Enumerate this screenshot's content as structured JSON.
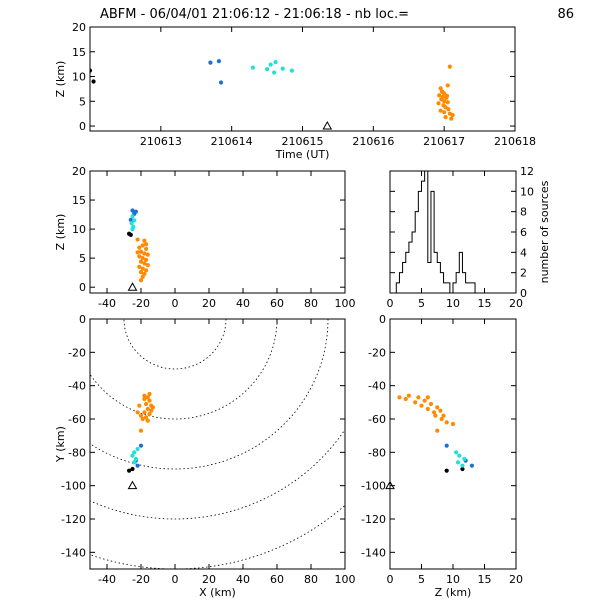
{
  "figure": {
    "title": "ABFM - 06/04/01 21:06:12 - 21:06:18 - nb loc.=",
    "count_label": "86"
  },
  "colors": {
    "black": "#000000",
    "blue": "#1f6fd6",
    "cyan": "#22e0d8",
    "orange": "#ff8a00"
  },
  "chart_data": [
    {
      "type": "scatter",
      "panel": "time-altitude",
      "xlabel": "Time (UT)",
      "ylabel": "Z (km)",
      "xlim": [
        210612,
        210618
      ],
      "ylim": [
        -1,
        20
      ],
      "xticks": [
        "210613",
        "210614",
        "210615",
        "210616",
        "210617",
        "210618"
      ],
      "yticks": [
        "0",
        "5",
        "10",
        "15",
        "20"
      ],
      "marker": {
        "x": 210615.35,
        "y": 0
      },
      "series": [
        {
          "color": "black",
          "points": [
            [
              210612.0,
              11.2
            ],
            [
              210612.05,
              9.0
            ]
          ]
        },
        {
          "color": "blue",
          "points": [
            [
              210613.7,
              12.8
            ],
            [
              210613.82,
              13.1
            ],
            [
              210613.85,
              8.8
            ]
          ]
        },
        {
          "color": "cyan",
          "points": [
            [
              210614.3,
              11.8
            ],
            [
              210614.5,
              11.5
            ],
            [
              210614.55,
              12.4
            ],
            [
              210614.62,
              12.9
            ],
            [
              210614.6,
              10.8
            ],
            [
              210614.72,
              11.6
            ],
            [
              210614.85,
              11.2
            ]
          ]
        },
        {
          "color": "orange",
          "points": [
            [
              210616.95,
              7.6
            ],
            [
              210616.97,
              7.0
            ],
            [
              210617.0,
              6.6
            ],
            [
              210616.93,
              6.2
            ],
            [
              210616.98,
              5.9
            ],
            [
              210617.03,
              5.7
            ],
            [
              210616.96,
              5.4
            ],
            [
              210617.0,
              5.0
            ],
            [
              210617.05,
              4.8
            ],
            [
              210616.92,
              4.6
            ],
            [
              210616.99,
              4.2
            ],
            [
              210617.02,
              3.8
            ],
            [
              210617.06,
              3.4
            ],
            [
              210616.95,
              3.1
            ],
            [
              210617.0,
              2.8
            ],
            [
              210617.08,
              2.5
            ],
            [
              210617.12,
              2.2
            ],
            [
              210617.02,
              1.8
            ],
            [
              210617.1,
              1.5
            ],
            [
              210617.05,
              8.2
            ],
            [
              210617.08,
              12.0
            ],
            [
              210616.97,
              6.9
            ],
            [
              210617.04,
              6.1
            ]
          ]
        }
      ]
    },
    {
      "type": "scatter",
      "panel": "x-altitude",
      "ylabel": "Z (km)",
      "xlim": [
        -50,
        100
      ],
      "ylim": [
        -1,
        20
      ],
      "xticks": [
        "-40",
        "-20",
        "0",
        "20",
        "40",
        "60",
        "80",
        "100"
      ],
      "yticks": [
        "0",
        "5",
        "10",
        "15",
        "20"
      ],
      "marker": {
        "x": -25,
        "y": 0
      },
      "series": [
        {
          "color": "black",
          "points": [
            [
              -27,
              9.2
            ],
            [
              -26,
              9.0
            ]
          ]
        },
        {
          "color": "blue",
          "points": [
            [
              -25,
              13.2
            ],
            [
              -23,
              13.0
            ],
            [
              -24,
              12.6
            ],
            [
              -26,
              11.6
            ]
          ]
        },
        {
          "color": "cyan",
          "points": [
            [
              -25,
              12.2
            ],
            [
              -24,
              11.5
            ],
            [
              -25.5,
              11.0
            ],
            [
              -24.5,
              10.4
            ],
            [
              -25,
              10.0
            ]
          ]
        },
        {
          "color": "orange",
          "points": [
            [
              -22,
              8.2
            ],
            [
              -18,
              8.0
            ],
            [
              -19,
              7.2
            ],
            [
              -21,
              6.8
            ],
            [
              -17,
              6.6
            ],
            [
              -20,
              6.1
            ],
            [
              -18,
              5.8
            ],
            [
              -16,
              5.6
            ],
            [
              -21,
              5.3
            ],
            [
              -19,
              5.0
            ],
            [
              -17,
              4.7
            ],
            [
              -20,
              4.4
            ],
            [
              -18,
              4.1
            ],
            [
              -16,
              3.8
            ],
            [
              -21,
              3.5
            ],
            [
              -19,
              3.2
            ],
            [
              -17,
              2.9
            ],
            [
              -20,
              2.6
            ],
            [
              -18,
              2.3
            ],
            [
              -19,
              1.8
            ],
            [
              -20,
              1.2
            ],
            [
              -17,
              7.4
            ],
            [
              -22,
              6.0
            ]
          ]
        }
      ]
    },
    {
      "type": "bar",
      "panel": "altitude-histogram",
      "ylabel": "number of sources",
      "xlim": [
        0,
        20
      ],
      "ylim": [
        0,
        12
      ],
      "xticks": [
        "0",
        "5",
        "10",
        "15",
        "20"
      ],
      "yticks": [
        "0",
        "2",
        "4",
        "6",
        "8",
        "10",
        "12"
      ],
      "bin_width": 0.5,
      "bins": [
        1,
        1.5,
        2,
        2.5,
        3,
        3.5,
        4,
        4.5,
        5,
        5.5,
        6,
        6.5,
        7,
        7.5,
        8,
        8.5,
        9,
        9.5,
        10,
        10.5,
        11,
        11.5,
        12,
        12.5,
        13,
        13.5
      ],
      "values": [
        1,
        2,
        3,
        4,
        5,
        6,
        8,
        10,
        11,
        12,
        3,
        10,
        4,
        3,
        2,
        1,
        1,
        0,
        1,
        2,
        4,
        2,
        1,
        1,
        1,
        0
      ]
    },
    {
      "type": "scatter",
      "panel": "plan-view",
      "xlabel": "X (km)",
      "ylabel": "Y (km)",
      "xlim": [
        -50,
        100
      ],
      "ylim": [
        -150,
        0
      ],
      "xticks": [
        "-40",
        "-20",
        "0",
        "20",
        "40",
        "60",
        "80",
        "100"
      ],
      "yticks": [
        "-140",
        "-120",
        "-100",
        "-80",
        "-60",
        "-40",
        "-20",
        "0"
      ],
      "range_rings_km": [
        30,
        60,
        90,
        120,
        150
      ],
      "ring_center": [
        0,
        0
      ],
      "marker": {
        "x": -25,
        "y": -100
      },
      "series": [
        {
          "color": "black",
          "points": [
            [
              -27,
              -91
            ],
            [
              -25,
              -90
            ]
          ]
        },
        {
          "color": "blue",
          "points": [
            [
              -22,
              -88
            ],
            [
              -20,
              -76
            ],
            [
              -23,
              -85
            ]
          ]
        },
        {
          "color": "cyan",
          "points": [
            [
              -24,
              -80
            ],
            [
              -25,
              -82
            ],
            [
              -23,
              -84
            ],
            [
              -24,
              -86
            ],
            [
              -22,
              -78
            ]
          ]
        },
        {
          "color": "orange",
          "points": [
            [
              -18,
              -46
            ],
            [
              -16,
              -47
            ],
            [
              -15,
              -49
            ],
            [
              -17,
              -51
            ],
            [
              -14,
              -52
            ],
            [
              -16,
              -54
            ],
            [
              -18,
              -56
            ],
            [
              -15,
              -57
            ],
            [
              -17,
              -59
            ],
            [
              -19,
              -60
            ],
            [
              -14,
              -55
            ],
            [
              -13,
              -53
            ],
            [
              -20,
              -58
            ],
            [
              -16,
              -61
            ],
            [
              -18,
              -48
            ],
            [
              -15,
              -45
            ],
            [
              -21,
              -52
            ],
            [
              -22,
              -56
            ],
            [
              -20,
              -67
            ]
          ]
        }
      ]
    },
    {
      "type": "scatter",
      "panel": "altitude-y",
      "xlabel": "Z (km)",
      "xlim": [
        0,
        20
      ],
      "ylim": [
        -150,
        0
      ],
      "xticks": [
        "0",
        "5",
        "10",
        "15",
        "20"
      ],
      "yticks": [
        "-140",
        "-120",
        "-100",
        "-80",
        "-60",
        "-40",
        "-20",
        "0"
      ],
      "marker": {
        "x": 0,
        "y": -100
      },
      "series": [
        {
          "color": "black",
          "points": [
            [
              9,
              -91
            ],
            [
              11.5,
              -90
            ]
          ]
        },
        {
          "color": "blue",
          "points": [
            [
              9,
              -76
            ],
            [
              12,
              -85
            ],
            [
              13,
              -88
            ]
          ]
        },
        {
          "color": "cyan",
          "points": [
            [
              10.5,
              -80
            ],
            [
              11,
              -82
            ],
            [
              11.8,
              -84
            ],
            [
              10.8,
              -86
            ],
            [
              11.5,
              -88
            ]
          ]
        },
        {
          "color": "orange",
          "points": [
            [
              1.5,
              -47
            ],
            [
              2.5,
              -48
            ],
            [
              3,
              -46
            ],
            [
              4,
              -50
            ],
            [
              4.5,
              -47
            ],
            [
              5,
              -52
            ],
            [
              5.5,
              -49
            ],
            [
              6,
              -54
            ],
            [
              6.5,
              -51
            ],
            [
              7,
              -56
            ],
            [
              7.5,
              -53
            ],
            [
              7.2,
              -58
            ],
            [
              8,
              -55
            ],
            [
              8.2,
              -60
            ],
            [
              9,
              -62
            ],
            [
              8.5,
              -58
            ],
            [
              10,
              -63
            ],
            [
              6,
              -47
            ],
            [
              7.5,
              -67
            ]
          ]
        }
      ]
    }
  ]
}
